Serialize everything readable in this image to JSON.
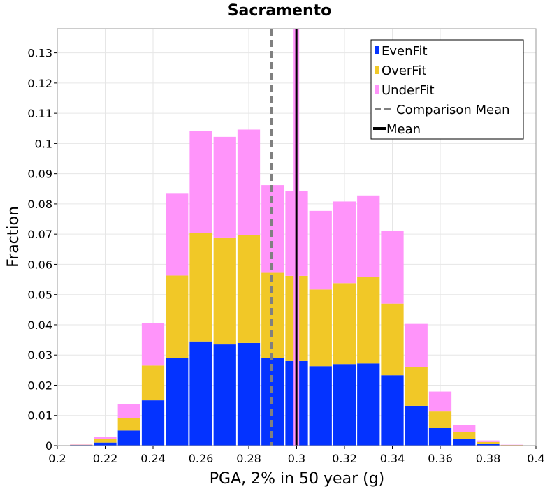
{
  "chart_data": {
    "type": "bar",
    "stacked": true,
    "title": "Sacramento",
    "xlabel": "PGA, 2% in 50 year (g)",
    "ylabel": "Fraction",
    "xlim": [
      0.2,
      0.4
    ],
    "ylim": [
      0,
      0.138
    ],
    "bin_width": 0.01,
    "grid": true,
    "legend_position": "top-right",
    "x_ticks": [
      "0.2",
      "0.22",
      "0.24",
      "0.26",
      "0.28",
      "0.3",
      "0.32",
      "0.34",
      "0.36",
      "0.38",
      "0.4"
    ],
    "y_ticks": [
      "0",
      "0.01",
      "0.02",
      "0.03",
      "0.04",
      "0.05",
      "0.06",
      "0.07",
      "0.08",
      "0.09",
      "0.1",
      "0.11",
      "0.12",
      "0.13"
    ],
    "bins": [
      0.21,
      0.22,
      0.23,
      0.24,
      0.25,
      0.26,
      0.27,
      0.28,
      0.29,
      0.3,
      0.31,
      0.32,
      0.33,
      0.34,
      0.35,
      0.36,
      0.37,
      0.38,
      0.39
    ],
    "series": [
      {
        "name": "EvenFit",
        "color": "#0433ff",
        "values": [
          0.0002,
          0.001,
          0.005,
          0.015,
          0.029,
          0.0345,
          0.0335,
          0.034,
          0.029,
          0.028,
          0.0263,
          0.027,
          0.0272,
          0.0233,
          0.0132,
          0.006,
          0.0022,
          0.0006,
          0.0001
        ]
      },
      {
        "name": "OverFit",
        "color": "#f1c827",
        "values": [
          0.0001,
          0.0012,
          0.0042,
          0.0115,
          0.0273,
          0.036,
          0.0354,
          0.0357,
          0.0282,
          0.0282,
          0.0254,
          0.0268,
          0.0286,
          0.0237,
          0.0128,
          0.0053,
          0.0022,
          0.0006,
          0.0001
        ]
      },
      {
        "name": "UnderFit",
        "color": "#ff94fa",
        "values": [
          0.0001,
          0.0008,
          0.0045,
          0.014,
          0.0273,
          0.0337,
          0.0333,
          0.0349,
          0.029,
          0.0281,
          0.026,
          0.027,
          0.027,
          0.0242,
          0.0143,
          0.0066,
          0.0024,
          0.0005,
          0.0001
        ]
      }
    ],
    "lines": [
      {
        "name": "Comparison Mean",
        "x": 0.2895,
        "color": "#808080",
        "style": "dashed"
      },
      {
        "name": "Mean",
        "x": 0.2999,
        "color": "#000000",
        "style": "solid",
        "highlight": "#ff94fa"
      }
    ]
  }
}
